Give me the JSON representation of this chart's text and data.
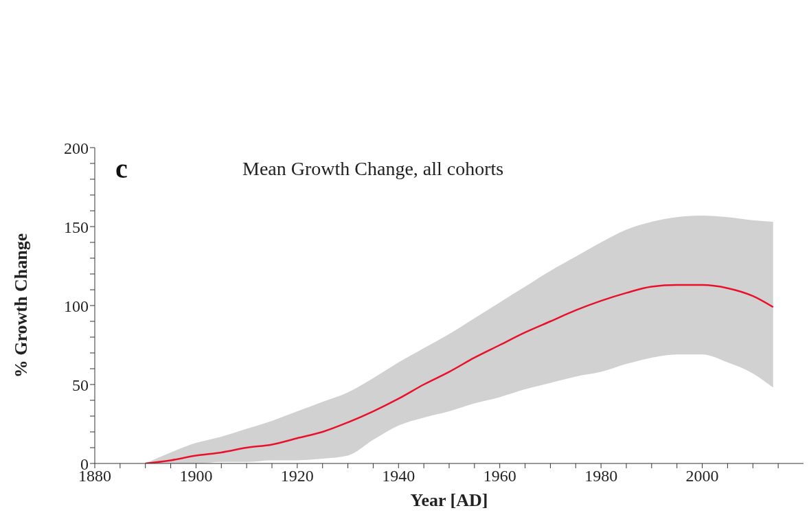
{
  "chart_data": {
    "type": "line",
    "title": "Mean Growth Change, all cohorts",
    "annotations": [
      "c"
    ],
    "xlabel": "Year [AD]",
    "ylabel": "% Growth Change",
    "x": [
      1890,
      1895,
      1900,
      1905,
      1910,
      1915,
      1920,
      1925,
      1930,
      1935,
      1940,
      1945,
      1950,
      1955,
      1960,
      1965,
      1970,
      1975,
      1980,
      1985,
      1990,
      1995,
      2000,
      2005,
      2010,
      2014
    ],
    "series": [
      {
        "color": "#e8102a",
        "values": [
          0,
          2,
          5,
          7,
          10,
          12,
          16,
          20,
          26,
          33,
          41,
          50,
          58,
          67,
          75,
          83,
          90,
          97,
          103,
          108,
          112,
          113,
          113,
          111,
          106,
          99
        ],
        "upper": [
          0,
          7,
          13,
          17,
          22,
          27,
          33,
          39,
          45,
          54,
          64,
          73,
          82,
          92,
          102,
          112,
          122,
          131,
          140,
          148,
          153,
          156,
          157,
          156,
          154,
          153
        ],
        "lower": [
          0,
          0,
          0,
          1,
          1,
          2,
          2,
          3,
          5,
          15,
          24,
          29,
          33,
          38,
          42,
          47,
          51,
          55,
          58,
          63,
          67,
          69,
          69,
          64,
          57,
          48
        ]
      }
    ],
    "xlim": [
      1880,
      2020
    ],
    "xticks": [
      1880,
      {
        "value": 1885,
        "label": null
      },
      1900,
      {
        "value": 1890,
        "label": null
      },
      {
        "value": 1895,
        "label": null
      },
      {
        "value": 1905,
        "label": null
      },
      {
        "value": 1910,
        "label": null
      },
      {
        "value": 1915,
        "label": null
      },
      1920,
      {
        "value": 1925,
        "label": null
      },
      {
        "value": 1930,
        "label": null
      },
      {
        "value": 1935,
        "label": null
      },
      1940,
      {
        "value": 1945,
        "label": null
      },
      {
        "value": 1950,
        "label": null
      },
      {
        "value": 1955,
        "label": null
      },
      1960,
      {
        "value": 1965,
        "label": null
      },
      {
        "value": 1970,
        "label": null
      },
      {
        "value": 1975,
        "label": null
      },
      1980,
      {
        "value": 1985,
        "label": null
      },
      {
        "value": 1990,
        "label": null
      },
      {
        "value": 1995,
        "label": null
      },
      2000,
      {
        "value": 2005,
        "label": null
      },
      {
        "value": 2010,
        "label": null
      },
      {
        "value": 2015,
        "label": null
      }
    ],
    "ylim": [
      0,
      200
    ],
    "yticks": [
      0,
      {
        "value": 10,
        "label": null
      },
      {
        "value": 20,
        "label": null
      },
      {
        "value": 30,
        "label": null
      },
      {
        "value": 40,
        "label": null
      },
      50,
      {
        "value": 60,
        "label": null
      },
      {
        "value": 70,
        "label": null
      },
      {
        "value": 80,
        "label": null
      },
      {
        "value": 90,
        "label": null
      },
      100,
      {
        "value": 110,
        "label": null
      },
      {
        "value": 120,
        "label": null
      },
      {
        "value": 130,
        "label": null
      },
      {
        "value": 140,
        "label": null
      },
      150,
      {
        "value": 160,
        "label": null
      },
      {
        "value": 170,
        "label": null
      },
      {
        "value": 180,
        "label": null
      },
      {
        "value": 190,
        "label": null
      },
      200
    ]
  }
}
